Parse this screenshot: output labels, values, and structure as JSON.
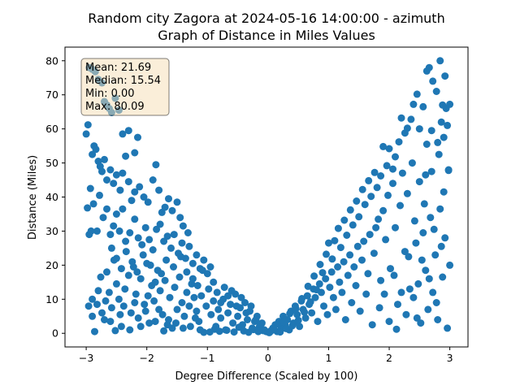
{
  "chart_data": {
    "type": "scatter",
    "title_line1": "Random city Zagora at 2024-05-16 14:00:00  - azimuth",
    "title_line2": "Graph of Distance in Miles Values",
    "xlabel": "Degree Difference (Scaled by 100)",
    "ylabel": "Distance (Miles)",
    "xlim": [
      -3.35,
      3.3
    ],
    "ylim": [
      -4,
      84
    ],
    "xticks": [
      -3,
      -2,
      -1,
      0,
      1,
      2,
      3
    ],
    "yticks": [
      0,
      10,
      20,
      30,
      40,
      50,
      60,
      70,
      80
    ],
    "grid": false,
    "marker_color": "#1f77b4",
    "stats": {
      "mean": "Mean: 21.69",
      "median": "Median: 15.54",
      "min": "Min: 0.00",
      "max": "Max: 80.09"
    },
    "stats_box_fill": "#f5deb3",
    "points": [
      [
        -3.0,
        58.5
      ],
      [
        -2.97,
        61.2
      ],
      [
        -2.95,
        78.0
      ],
      [
        -2.9,
        77.5
      ],
      [
        -2.85,
        76.8
      ],
      [
        -2.8,
        74.5
      ],
      [
        -2.74,
        73.5
      ],
      [
        -2.7,
        68.0
      ],
      [
        -2.66,
        67.0
      ],
      [
        -2.62,
        66.0
      ],
      [
        -2.58,
        64.8
      ],
      [
        -2.52,
        69.0
      ],
      [
        -2.46,
        65.5
      ],
      [
        -2.4,
        58.5
      ],
      [
        -2.3,
        59.5
      ],
      [
        -2.2,
        53.0
      ],
      [
        -2.15,
        57.5
      ],
      [
        -2.95,
        29.0
      ],
      [
        -2.92,
        30.0
      ],
      [
        -2.9,
        52.5
      ],
      [
        -2.87,
        55.0
      ],
      [
        -2.84,
        54.0
      ],
      [
        -2.8,
        50.5
      ],
      [
        -2.77,
        49.0
      ],
      [
        -2.74,
        47.5
      ],
      [
        -2.7,
        51.0
      ],
      [
        -2.66,
        45.0
      ],
      [
        -2.6,
        48.0
      ],
      [
        -2.55,
        44.0
      ],
      [
        -2.5,
        46.5
      ],
      [
        -2.44,
        42.0
      ],
      [
        -2.4,
        47.0
      ],
      [
        -2.35,
        52.0
      ],
      [
        -2.3,
        44.5
      ],
      [
        -2.25,
        39.0
      ],
      [
        -2.2,
        41.5
      ],
      [
        -2.12,
        43.0
      ],
      [
        -2.05,
        40.0
      ],
      [
        -1.98,
        38.5
      ],
      [
        -1.9,
        45.0
      ],
      [
        -1.85,
        49.5
      ],
      [
        -1.8,
        42.0
      ],
      [
        -1.75,
        35.5
      ],
      [
        -1.7,
        37.0
      ],
      [
        -1.64,
        39.5
      ],
      [
        -1.58,
        36.0
      ],
      [
        -1.5,
        38.5
      ],
      [
        -1.45,
        34.0
      ],
      [
        -1.4,
        31.5
      ],
      [
        -1.32,
        29.5
      ],
      [
        -2.98,
        36.8
      ],
      [
        -2.93,
        42.5
      ],
      [
        -2.88,
        38.0
      ],
      [
        -2.82,
        30.0
      ],
      [
        -2.78,
        40.5
      ],
      [
        -2.72,
        34.0
      ],
      [
        -2.66,
        36.5
      ],
      [
        -2.6,
        29.0
      ],
      [
        -2.55,
        31.5
      ],
      [
        -2.5,
        35.0
      ],
      [
        -2.45,
        30.0
      ],
      [
        -2.4,
        36.5
      ],
      [
        -2.35,
        27.0
      ],
      [
        -2.28,
        29.5
      ],
      [
        -2.2,
        33.5
      ],
      [
        -2.14,
        28.0
      ],
      [
        -2.08,
        26.0
      ],
      [
        -2.02,
        31.0
      ],
      [
        -1.96,
        27.5
      ],
      [
        -1.9,
        24.5
      ],
      [
        -1.84,
        30.5
      ],
      [
        -1.78,
        32.0
      ],
      [
        -1.72,
        27.0
      ],
      [
        -1.66,
        28.5
      ],
      [
        -1.6,
        25.0
      ],
      [
        -1.55,
        29.0
      ],
      [
        -1.48,
        23.5
      ],
      [
        -1.42,
        26.5
      ],
      [
        -1.36,
        22.0
      ],
      [
        -1.3,
        25.5
      ],
      [
        -1.24,
        20.5
      ],
      [
        -1.18,
        23.0
      ],
      [
        -1.12,
        19.0
      ],
      [
        -1.06,
        21.5
      ],
      [
        -1.0,
        17.5
      ],
      [
        -0.95,
        19.5
      ],
      [
        -2.96,
        8.0
      ],
      [
        -2.9,
        5.0
      ],
      [
        -2.86,
        0.5
      ],
      [
        -2.82,
        8.5
      ],
      [
        -2.76,
        16.5
      ],
      [
        -2.7,
        4.0
      ],
      [
        -2.66,
        18.0
      ],
      [
        -2.62,
        12.0
      ],
      [
        -2.58,
        7.5
      ],
      [
        -2.54,
        21.5
      ],
      [
        -2.5,
        14.5
      ],
      [
        -2.46,
        10.0
      ],
      [
        -2.42,
        2.0
      ],
      [
        -2.36,
        13.0
      ],
      [
        -2.3,
        17.0
      ],
      [
        -2.26,
        6.0
      ],
      [
        -2.22,
        19.5
      ],
      [
        -2.18,
        11.5
      ],
      [
        -2.14,
        4.5
      ],
      [
        -2.1,
        16.0
      ],
      [
        -2.04,
        8.5
      ],
      [
        -2.0,
        20.5
      ],
      [
        -1.96,
        3.0
      ],
      [
        -1.92,
        14.0
      ],
      [
        -1.88,
        9.5
      ],
      [
        -1.82,
        18.5
      ],
      [
        -1.78,
        12.5
      ],
      [
        -1.74,
        5.5
      ],
      [
        -1.7,
        15.5
      ],
      [
        -1.66,
        2.5
      ],
      [
        -1.62,
        10.5
      ],
      [
        -1.58,
        1.5
      ],
      [
        -1.54,
        13.5
      ],
      [
        -1.5,
        7.0
      ],
      [
        -1.46,
        16.5
      ],
      [
        -1.42,
        9.0
      ],
      [
        -1.38,
        5.0
      ],
      [
        -1.34,
        12.0
      ],
      [
        -1.3,
        8.0
      ],
      [
        -1.26,
        14.5
      ],
      [
        -1.22,
        10.5
      ],
      [
        -1.18,
        6.5
      ],
      [
        -1.14,
        3.5
      ],
      [
        -1.1,
        11.0
      ],
      [
        -1.06,
        0.3
      ],
      [
        -1.02,
        8.0
      ],
      [
        -0.98,
        13.0
      ],
      [
        -0.94,
        5.5
      ],
      [
        -0.9,
        9.5
      ],
      [
        -0.86,
        2.0
      ],
      [
        -0.82,
        7.0
      ],
      [
        -0.78,
        4.5
      ],
      [
        -0.74,
        10.0
      ],
      [
        -0.7,
        1.0
      ],
      [
        -0.66,
        6.0
      ],
      [
        -0.62,
        8.5
      ],
      [
        -0.58,
        3.0
      ],
      [
        -0.54,
        11.5
      ],
      [
        -0.5,
        5.0
      ],
      [
        -0.46,
        7.5
      ],
      [
        -0.42,
        2.5
      ],
      [
        -0.38,
        9.0
      ],
      [
        -0.34,
        4.0
      ],
      [
        -0.3,
        6.5
      ],
      [
        -0.26,
        1.5
      ],
      [
        -0.22,
        3.5
      ],
      [
        -0.18,
        5.0
      ],
      [
        -0.14,
        2.0
      ],
      [
        -0.1,
        3.0
      ],
      [
        -0.06,
        1.0
      ],
      [
        -0.03,
        0.5
      ],
      [
        -2.58,
        25.0
      ],
      [
        -2.5,
        22.0
      ],
      [
        -2.42,
        19.0
      ],
      [
        -2.34,
        24.0
      ],
      [
        -2.24,
        21.0
      ],
      [
        -2.16,
        18.0
      ],
      [
        -2.06,
        23.0
      ],
      [
        -1.94,
        20.0
      ],
      [
        -1.86,
        15.0
      ],
      [
        -1.76,
        17.5
      ],
      [
        -1.68,
        21.5
      ],
      [
        -1.56,
        19.5
      ],
      [
        -1.44,
        22.5
      ],
      [
        -1.34,
        18.0
      ],
      [
        -1.24,
        16.0
      ],
      [
        -1.16,
        14.0
      ],
      [
        -1.08,
        18.5
      ],
      [
        -0.9,
        15.0
      ],
      [
        -0.84,
        12.0
      ],
      [
        -0.78,
        9.0
      ],
      [
        -0.72,
        13.5
      ],
      [
        -0.66,
        11.0
      ],
      [
        -0.6,
        12.5
      ],
      [
        -0.52,
        8.0
      ],
      [
        -0.44,
        10.5
      ],
      [
        -0.36,
        6.0
      ],
      [
        -0.28,
        8.0
      ],
      [
        -0.2,
        4.0
      ],
      [
        -0.12,
        2.5
      ],
      [
        -0.08,
        0.8
      ],
      [
        -2.9,
        10.0
      ],
      [
        -2.8,
        12.5
      ],
      [
        -2.74,
        6.0
      ],
      [
        -2.68,
        9.5
      ],
      [
        -2.6,
        3.5
      ],
      [
        -2.52,
        0.8
      ],
      [
        -2.44,
        5.5
      ],
      [
        -2.38,
        8.0
      ],
      [
        -2.28,
        1.0
      ],
      [
        -2.2,
        9.0
      ],
      [
        -2.1,
        2.0
      ],
      [
        -2.02,
        6.5
      ],
      [
        -1.98,
        11.0
      ],
      [
        -1.86,
        3.5
      ],
      [
        -1.8,
        7.0
      ],
      [
        -1.72,
        0.7
      ],
      [
        -1.64,
        4.0
      ],
      [
        -1.52,
        3.0
      ],
      [
        -1.4,
        1.5
      ],
      [
        -1.28,
        2.0
      ],
      [
        -1.2,
        4.5
      ],
      [
        -1.12,
        1.0
      ],
      [
        -0.96,
        0.4
      ],
      [
        -0.88,
        1.2
      ],
      [
        -0.8,
        0.6
      ],
      [
        -0.68,
        0.9
      ],
      [
        -0.56,
        0.4
      ],
      [
        -0.48,
        1.8
      ],
      [
        -0.4,
        0.7
      ],
      [
        -0.32,
        0.3
      ],
      [
        -0.24,
        1.1
      ],
      [
        -0.16,
        0.5
      ],
      [
        0.02,
        0.2
      ],
      [
        0.05,
        0.8
      ],
      [
        0.08,
        1.5
      ],
      [
        0.12,
        2.5
      ],
      [
        0.15,
        0.5
      ],
      [
        0.18,
        3.5
      ],
      [
        0.22,
        1.8
      ],
      [
        0.25,
        5.0
      ],
      [
        0.28,
        2.5
      ],
      [
        0.32,
        4.0
      ],
      [
        0.35,
        1.0
      ],
      [
        0.38,
        6.5
      ],
      [
        0.42,
        3.0
      ],
      [
        0.45,
        8.0
      ],
      [
        0.48,
        5.5
      ],
      [
        0.52,
        2.0
      ],
      [
        0.55,
        9.5
      ],
      [
        0.58,
        7.0
      ],
      [
        0.62,
        4.5
      ],
      [
        0.65,
        11.0
      ],
      [
        0.68,
        8.5
      ],
      [
        0.72,
        6.0
      ],
      [
        0.75,
        13.0
      ],
      [
        0.78,
        10.5
      ],
      [
        0.82,
        3.5
      ],
      [
        0.85,
        14.5
      ],
      [
        0.88,
        12.0
      ],
      [
        0.92,
        8.0
      ],
      [
        0.95,
        16.0
      ],
      [
        0.98,
        5.5
      ],
      [
        1.02,
        13.5
      ],
      [
        1.05,
        18.0
      ],
      [
        1.08,
        10.5
      ],
      [
        1.12,
        7.0
      ],
      [
        1.15,
        19.5
      ],
      [
        1.18,
        15.0
      ],
      [
        1.22,
        12.0
      ],
      [
        1.25,
        21.0
      ],
      [
        1.28,
        4.0
      ],
      [
        1.32,
        17.0
      ],
      [
        1.35,
        23.0
      ],
      [
        1.38,
        9.0
      ],
      [
        1.42,
        19.5
      ],
      [
        1.45,
        14.0
      ],
      [
        1.48,
        25.5
      ],
      [
        1.52,
        6.5
      ],
      [
        1.55,
        21.5
      ],
      [
        1.58,
        27.0
      ],
      [
        1.62,
        11.5
      ],
      [
        1.65,
        17.5
      ],
      [
        1.68,
        29.0
      ],
      [
        1.72,
        2.5
      ],
      [
        1.75,
        23.5
      ],
      [
        1.78,
        31.0
      ],
      [
        0.04,
        0.5
      ],
      [
        0.1,
        1.2
      ],
      [
        0.16,
        2.8
      ],
      [
        0.2,
        0.4
      ],
      [
        0.26,
        3.2
      ],
      [
        0.3,
        1.4
      ],
      [
        0.36,
        5.8
      ],
      [
        0.4,
        2.2
      ],
      [
        0.46,
        7.2
      ],
      [
        0.5,
        3.8
      ],
      [
        0.56,
        10.2
      ],
      [
        0.6,
        6.2
      ],
      [
        0.66,
        13.8
      ],
      [
        0.7,
        9.2
      ],
      [
        0.76,
        16.8
      ],
      [
        0.8,
        12.8
      ],
      [
        0.86,
        20.2
      ],
      [
        0.9,
        17.8
      ],
      [
        0.96,
        23.2
      ],
      [
        1.0,
        26.5
      ],
      [
        1.06,
        21.8
      ],
      [
        1.1,
        27.2
      ],
      [
        1.16,
        30.8
      ],
      [
        1.2,
        25.2
      ],
      [
        1.26,
        33.2
      ],
      [
        1.3,
        28.8
      ],
      [
        1.36,
        36.2
      ],
      [
        1.4,
        31.8
      ],
      [
        1.46,
        38.8
      ],
      [
        1.5,
        34.2
      ],
      [
        1.56,
        42.2
      ],
      [
        1.6,
        37.8
      ],
      [
        1.66,
        44.8
      ],
      [
        1.7,
        40.2
      ],
      [
        1.76,
        47.2
      ],
      [
        1.8,
        42.8
      ],
      [
        1.86,
        46.2
      ],
      [
        1.9,
        54.8
      ],
      [
        1.96,
        49.2
      ],
      [
        2.0,
        54.2
      ],
      [
        2.06,
        48.2
      ],
      [
        2.1,
        51.8
      ],
      [
        2.16,
        56.2
      ],
      [
        2.2,
        63.2
      ],
      [
        2.26,
        58.8
      ],
      [
        2.3,
        60.2
      ],
      [
        2.36,
        62.8
      ],
      [
        2.4,
        67.2
      ],
      [
        2.46,
        70.2
      ],
      [
        1.82,
        33.5
      ],
      [
        1.86,
        15.5
      ],
      [
        1.9,
        36.0
      ],
      [
        1.94,
        27.5
      ],
      [
        1.98,
        40.5
      ],
      [
        2.02,
        19.0
      ],
      [
        2.06,
        44.0
      ],
      [
        2.1,
        31.0
      ],
      [
        2.14,
        8.5
      ],
      [
        2.18,
        37.5
      ],
      [
        2.22,
        47.0
      ],
      [
        2.26,
        24.0
      ],
      [
        2.3,
        41.0
      ],
      [
        2.34,
        13.0
      ],
      [
        2.38,
        50.0
      ],
      [
        2.42,
        33.0
      ],
      [
        2.46,
        4.5
      ],
      [
        2.5,
        44.5
      ],
      [
        2.54,
        21.5
      ],
      [
        2.58,
        38.0
      ],
      [
        2.62,
        55.5
      ],
      [
        2.66,
        16.0
      ],
      [
        2.7,
        47.5
      ],
      [
        2.74,
        30.5
      ],
      [
        2.78,
        9.0
      ],
      [
        2.82,
        52.5
      ],
      [
        2.86,
        25.5
      ],
      [
        2.9,
        41.5
      ],
      [
        2.94,
        66.0
      ],
      [
        2.98,
        48.0
      ],
      [
        1.84,
        7.5
      ],
      [
        1.92,
        11.5
      ],
      [
        2.0,
        3.5
      ],
      [
        2.08,
        17.0
      ],
      [
        2.12,
        1.2
      ],
      [
        2.2,
        12.0
      ],
      [
        2.28,
        5.5
      ],
      [
        2.32,
        22.5
      ],
      [
        2.4,
        10.5
      ],
      [
        2.44,
        26.5
      ],
      [
        2.48,
        14.5
      ],
      [
        2.52,
        3.0
      ],
      [
        2.56,
        29.5
      ],
      [
        2.6,
        18.5
      ],
      [
        2.64,
        7.0
      ],
      [
        2.68,
        34.0
      ],
      [
        2.72,
        12.0
      ],
      [
        2.76,
        23.0
      ],
      [
        2.8,
        4.0
      ],
      [
        2.84,
        36.5
      ],
      [
        2.88,
        16.5
      ],
      [
        2.92,
        28.0
      ],
      [
        2.96,
        1.5
      ],
      [
        3.0,
        20.0
      ],
      [
        2.56,
        66.5
      ],
      [
        2.62,
        77.0
      ],
      [
        2.66,
        78.0
      ],
      [
        2.72,
        74.0
      ],
      [
        2.78,
        71.0
      ],
      [
        2.84,
        80.0
      ],
      [
        2.88,
        67.0
      ],
      [
        2.92,
        75.5
      ],
      [
        2.96,
        61.0
      ],
      [
        3.0,
        67.2
      ],
      [
        2.5,
        60.0
      ],
      [
        2.7,
        59.5
      ],
      [
        2.8,
        56.0
      ],
      [
        2.9,
        57.5
      ],
      [
        2.6,
        46.5
      ],
      [
        2.86,
        62.0
      ],
      [
        2.98,
        47.8
      ]
    ]
  }
}
